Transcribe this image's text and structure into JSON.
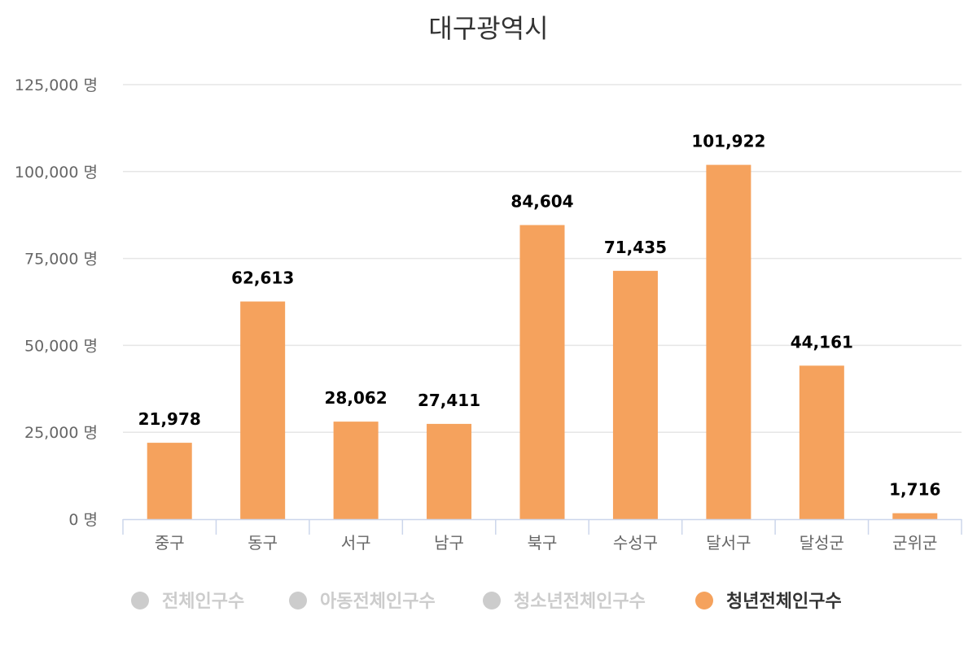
{
  "chart_data": {
    "type": "bar",
    "title": "대구광역시",
    "xlabel": "",
    "ylabel": "",
    "ylim": [
      0,
      125000
    ],
    "grid": true,
    "yticks": [
      0,
      25000,
      50000,
      75000,
      100000,
      125000
    ],
    "ytick_labels": [
      "0 명",
      "25,000 명",
      "50,000 명",
      "75,000 명",
      "100,000 명",
      "125,000 명"
    ],
    "categories": [
      "중구",
      "동구",
      "서구",
      "남구",
      "북구",
      "수성구",
      "달서구",
      "달성군",
      "군위군"
    ],
    "series": [
      {
        "name": "청년전체인구수",
        "color": "#f5a25d",
        "values": [
          21978,
          62613,
          28062,
          27411,
          84604,
          71435,
          101922,
          44161,
          1716
        ],
        "data_labels": [
          "21,978",
          "62,613",
          "28,062",
          "27,411",
          "84,604",
          "71,435",
          "101,922",
          "44,161",
          "1,716"
        ]
      }
    ],
    "legend": {
      "placement": "bottom-center",
      "items": [
        {
          "label": "전체인구수",
          "active": false,
          "color": "#cccccc"
        },
        {
          "label": "아동전체인구수",
          "active": false,
          "color": "#cccccc"
        },
        {
          "label": "청소년전체인구수",
          "active": false,
          "color": "#cccccc"
        },
        {
          "label": "청년전체인구수",
          "active": true,
          "color": "#f5a25d"
        }
      ]
    },
    "colors": {
      "grid": "#e6e6e6",
      "axis": "#ccd6eb",
      "legend_inactive_text": "#cccccc",
      "legend_active_text": "#333333"
    }
  }
}
